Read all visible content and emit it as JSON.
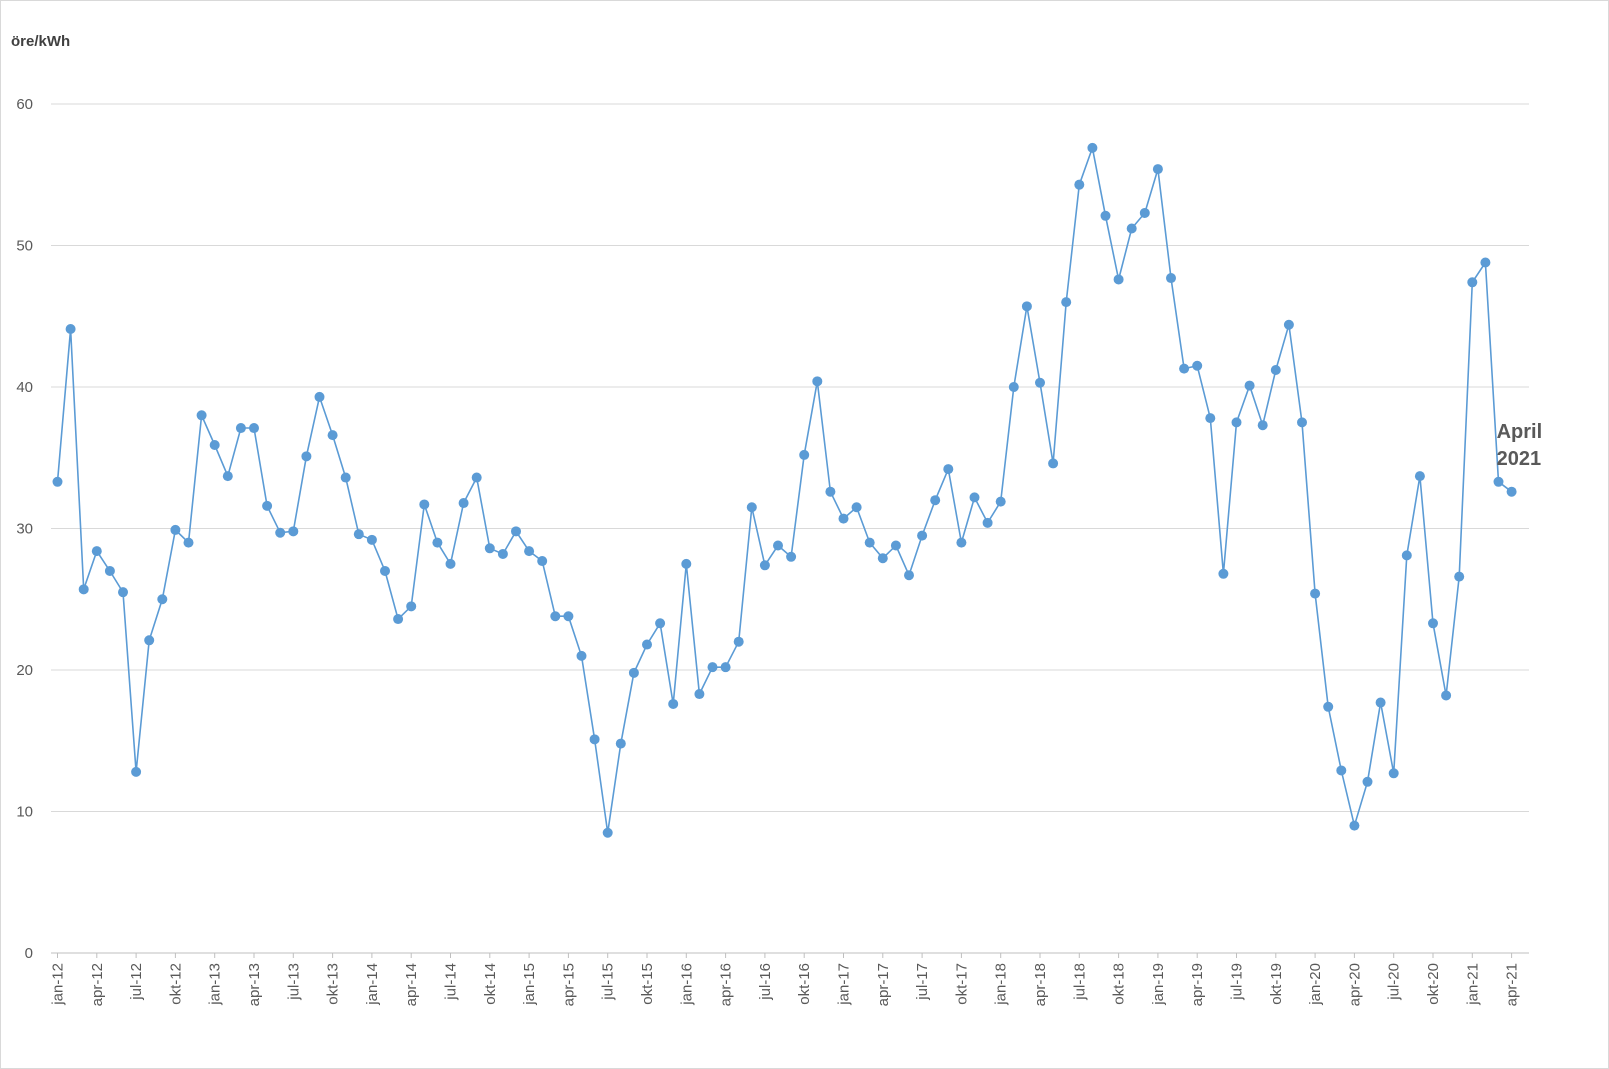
{
  "chart_data": {
    "type": "line",
    "ylabel": "öre/kWh",
    "xlabel": "",
    "title": "",
    "ylim": [
      0,
      60
    ],
    "yticks": [
      "0",
      "10",
      "20",
      "30",
      "40",
      "50",
      "60"
    ],
    "grid": true,
    "color": "#5b9bd5",
    "x": [
      "jan-12",
      "feb-12",
      "mar-12",
      "apr-12",
      "maj-12",
      "jun-12",
      "jul-12",
      "aug-12",
      "sep-12",
      "okt-12",
      "nov-12",
      "dec-12",
      "jan-13",
      "feb-13",
      "mar-13",
      "apr-13",
      "maj-13",
      "jun-13",
      "jul-13",
      "aug-13",
      "sep-13",
      "okt-13",
      "nov-13",
      "dec-13",
      "jan-14",
      "feb-14",
      "mar-14",
      "apr-14",
      "maj-14",
      "jun-14",
      "jul-14",
      "aug-14",
      "sep-14",
      "okt-14",
      "nov-14",
      "dec-14",
      "jan-15",
      "feb-15",
      "mar-15",
      "apr-15",
      "maj-15",
      "jun-15",
      "jul-15",
      "aug-15",
      "sep-15",
      "okt-15",
      "nov-15",
      "dec-15",
      "jan-16",
      "feb-16",
      "mar-16",
      "apr-16",
      "maj-16",
      "jun-16",
      "jul-16",
      "aug-16",
      "sep-16",
      "okt-16",
      "nov-16",
      "dec-16",
      "jan-17",
      "feb-17",
      "mar-17",
      "apr-17",
      "maj-17",
      "jun-17",
      "jul-17",
      "aug-17",
      "sep-17",
      "okt-17",
      "nov-17",
      "dec-17",
      "jan-18",
      "feb-18",
      "mar-18",
      "apr-18",
      "maj-18",
      "jun-18",
      "jul-18",
      "aug-18",
      "sep-18",
      "okt-18",
      "nov-18",
      "dec-18",
      "jan-19",
      "feb-19",
      "mar-19",
      "apr-19",
      "maj-19",
      "jun-19",
      "jul-19",
      "aug-19",
      "sep-19",
      "okt-19",
      "nov-19",
      "dec-19",
      "jan-20",
      "feb-20",
      "mar-20",
      "apr-20",
      "maj-20",
      "jun-20",
      "jul-20",
      "aug-20",
      "sep-20",
      "okt-20",
      "nov-20",
      "dec-20",
      "jan-21",
      "feb-21",
      "mar-21",
      "apr-21"
    ],
    "xticks": [
      "jan-12",
      "apr-12",
      "jul-12",
      "okt-12",
      "jan-13",
      "apr-13",
      "jul-13",
      "okt-13",
      "jan-14",
      "apr-14",
      "jul-14",
      "okt-14",
      "jan-15",
      "apr-15",
      "jul-15",
      "okt-15",
      "jan-16",
      "apr-16",
      "jul-16",
      "okt-16",
      "jan-17",
      "apr-17",
      "jul-17",
      "okt-17",
      "jan-18",
      "apr-18",
      "jul-18",
      "okt-18",
      "jan-19",
      "apr-19",
      "jul-19",
      "okt-19",
      "jan-20",
      "apr-20",
      "jul-20",
      "okt-20",
      "jan-21",
      "apr-21"
    ],
    "series": [
      {
        "values": [
          33.3,
          44.1,
          25.7,
          28.4,
          27.0,
          25.5,
          12.8,
          22.1,
          25.0,
          29.9,
          29.0,
          38.0,
          35.9,
          33.7,
          37.1,
          37.1,
          31.6,
          29.7,
          29.8,
          35.1,
          39.3,
          36.6,
          33.6,
          29.6,
          29.2,
          27.0,
          23.6,
          24.5,
          31.7,
          29.0,
          27.5,
          31.8,
          33.6,
          28.6,
          28.2,
          29.8,
          28.4,
          27.7,
          23.8,
          23.8,
          21.0,
          15.1,
          8.5,
          14.8,
          19.8,
          21.8,
          23.3,
          17.6,
          27.5,
          18.3,
          20.2,
          20.2,
          22.0,
          31.5,
          27.4,
          28.8,
          28.0,
          35.2,
          40.4,
          32.6,
          30.7,
          31.5,
          29.0,
          27.9,
          28.8,
          26.7,
          29.5,
          32.0,
          34.2,
          29.0,
          32.2,
          30.4,
          31.9,
          40.0,
          45.7,
          40.3,
          34.6,
          46.0,
          54.3,
          56.9,
          52.1,
          47.6,
          51.2,
          52.3,
          55.4,
          47.7,
          41.3,
          41.5,
          37.8,
          26.8,
          37.5,
          40.1,
          37.3,
          41.2,
          44.4,
          37.5,
          25.4,
          17.4,
          12.9,
          9.0,
          12.1,
          17.7,
          12.7,
          28.1,
          33.7,
          23.3,
          18.2,
          26.6,
          47.4,
          48.8,
          33.3,
          32.6
        ]
      }
    ],
    "annotation": {
      "line1": "April",
      "line2": "2021"
    }
  }
}
